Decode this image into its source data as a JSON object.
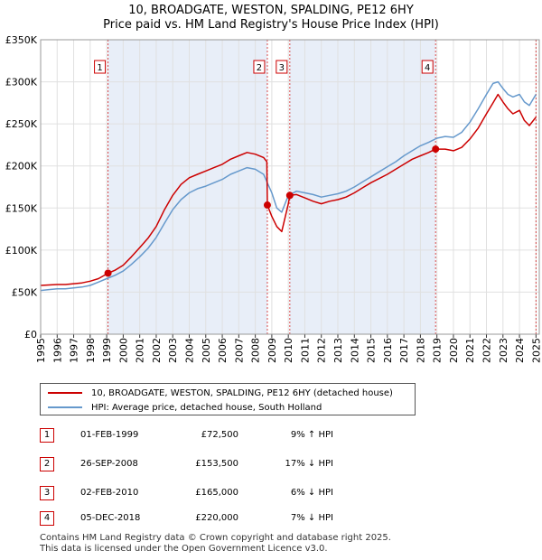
{
  "title_line1": "10, BROADGATE, WESTON, SPALDING, PE12 6HY",
  "title_line2": "Price paid vs. HM Land Registry's House Price Index (HPI)",
  "legend": {
    "series1": "10, BROADGATE, WESTON, SPALDING, PE12 6HY (detached house)",
    "series2": "HPI: Average price, detached house, South Holland"
  },
  "colors": {
    "property": "#cc0000",
    "hpi": "#6699cc",
    "shade": "#e8eef8",
    "grid": "#e0e0e0"
  },
  "sales": [
    {
      "num": "1",
      "date": "01-FEB-1999",
      "price": "£72,500",
      "hpi": "9% ↑ HPI"
    },
    {
      "num": "2",
      "date": "26-SEP-2008",
      "price": "£153,500",
      "hpi": "17% ↓ HPI"
    },
    {
      "num": "3",
      "date": "02-FEB-2010",
      "price": "£165,000",
      "hpi": "6% ↓ HPI"
    },
    {
      "num": "4",
      "date": "05-DEC-2018",
      "price": "£220,000",
      "hpi": "7% ↓ HPI"
    }
  ],
  "footer_line1": "Contains HM Land Registry data © Crown copyright and database right 2025.",
  "footer_line2": "This data is licensed under the Open Government Licence v3.0.",
  "chart_data": {
    "type": "line",
    "title": "10, BROADGATE, WESTON, SPALDING, PE12 6HY — Price paid vs. HM Land Registry's House Price Index (HPI)",
    "xlim": [
      1995.0,
      2025.2
    ],
    "ylim": [
      0,
      350000
    ],
    "x_ticks": [
      1995,
      1996,
      1997,
      1998,
      1999,
      2000,
      2001,
      2002,
      2003,
      2004,
      2005,
      2006,
      2007,
      2008,
      2009,
      2010,
      2011,
      2012,
      2013,
      2014,
      2015,
      2016,
      2017,
      2018,
      2019,
      2020,
      2021,
      2022,
      2023,
      2024,
      2025
    ],
    "y_ticks": [
      {
        "value": 0,
        "label": "£0"
      },
      {
        "value": 50000,
        "label": "£50K"
      },
      {
        "value": 100000,
        "label": "£100K"
      },
      {
        "value": 150000,
        "label": "£150K"
      },
      {
        "value": 200000,
        "label": "£200K"
      },
      {
        "value": 250000,
        "label": "£250K"
      },
      {
        "value": 300000,
        "label": "£300K"
      },
      {
        "value": 350000,
        "label": "£350K"
      }
    ],
    "shaded_spans": [
      [
        1999.08,
        2008.73
      ],
      [
        2010.09,
        2018.92
      ]
    ],
    "sale_markers": [
      {
        "label": "1",
        "x": 1999.08,
        "y": 72500
      },
      {
        "label": "2",
        "x": 2008.73,
        "y": 153500
      },
      {
        "label": "3",
        "x": 2010.09,
        "y": 165000
      },
      {
        "label": "4",
        "x": 2018.92,
        "y": 220000
      }
    ],
    "series": [
      {
        "name": "10, BROADGATE, WESTON, SPALDING, PE12 6HY (detached house)",
        "color": "#cc0000",
        "x": [
          1995.0,
          1995.5,
          1996.0,
          1996.5,
          1997.0,
          1997.5,
          1998.0,
          1998.5,
          1999.08,
          1999.5,
          2000.0,
          2000.5,
          2001.0,
          2001.5,
          2002.0,
          2002.5,
          2003.0,
          2003.5,
          2004.0,
          2004.5,
          2005.0,
          2005.5,
          2006.0,
          2006.5,
          2007.0,
          2007.5,
          2008.0,
          2008.5,
          2008.7,
          2008.73,
          2009.0,
          2009.3,
          2009.6,
          2010.0,
          2010.09,
          2010.5,
          2011.0,
          2011.5,
          2012.0,
          2012.5,
          2013.0,
          2013.5,
          2014.0,
          2014.5,
          2015.0,
          2015.5,
          2016.0,
          2016.5,
          2017.0,
          2017.5,
          2018.0,
          2018.5,
          2018.92,
          2019.5,
          2020.0,
          2020.5,
          2021.0,
          2021.5,
          2022.0,
          2022.4,
          2022.7,
          2023.0,
          2023.3,
          2023.6,
          2024.0,
          2024.3,
          2024.6,
          2025.0
        ],
        "y": [
          58000,
          58500,
          59000,
          59000,
          60000,
          61000,
          63000,
          66000,
          72500,
          76000,
          82000,
          92000,
          103000,
          114000,
          128000,
          148000,
          165000,
          178000,
          186000,
          190000,
          194000,
          198000,
          202000,
          208000,
          212000,
          216000,
          214000,
          210000,
          205000,
          153500,
          140000,
          128000,
          122000,
          155000,
          165000,
          166000,
          162000,
          158000,
          155000,
          158000,
          160000,
          163000,
          168000,
          174000,
          180000,
          185000,
          190000,
          196000,
          202000,
          208000,
          212000,
          216000,
          220000,
          220000,
          218000,
          222000,
          232000,
          245000,
          262000,
          275000,
          285000,
          276000,
          268000,
          262000,
          266000,
          254000,
          248000,
          258000
        ]
      },
      {
        "name": "HPI: Average price, detached house, South Holland",
        "color": "#6699cc",
        "x": [
          1995.0,
          1995.5,
          1996.0,
          1996.5,
          1997.0,
          1997.5,
          1998.0,
          1998.5,
          1999.0,
          1999.5,
          2000.0,
          2000.5,
          2001.0,
          2001.5,
          2002.0,
          2002.5,
          2003.0,
          2003.5,
          2004.0,
          2004.5,
          2005.0,
          2005.5,
          2006.0,
          2006.5,
          2007.0,
          2007.5,
          2008.0,
          2008.5,
          2009.0,
          2009.3,
          2009.6,
          2010.0,
          2010.5,
          2011.0,
          2011.5,
          2012.0,
          2012.5,
          2013.0,
          2013.5,
          2014.0,
          2014.5,
          2015.0,
          2015.5,
          2016.0,
          2016.5,
          2017.0,
          2017.5,
          2018.0,
          2018.5,
          2019.0,
          2019.5,
          2020.0,
          2020.5,
          2021.0,
          2021.5,
          2022.0,
          2022.4,
          2022.7,
          2023.0,
          2023.3,
          2023.6,
          2024.0,
          2024.3,
          2024.6,
          2025.0
        ],
        "y": [
          52000,
          53000,
          54000,
          54000,
          55000,
          56000,
          58000,
          62000,
          66000,
          70000,
          75000,
          83000,
          92000,
          102000,
          115000,
          132000,
          148000,
          160000,
          168000,
          173000,
          176000,
          180000,
          184000,
          190000,
          194000,
          198000,
          196000,
          190000,
          168000,
          150000,
          145000,
          165000,
          170000,
          168000,
          166000,
          163000,
          165000,
          167000,
          170000,
          175000,
          181000,
          187000,
          193000,
          199000,
          205000,
          212000,
          218000,
          224000,
          228000,
          233000,
          235000,
          234000,
          240000,
          252000,
          268000,
          285000,
          298000,
          300000,
          292000,
          285000,
          282000,
          285000,
          276000,
          272000,
          285000
        ]
      }
    ]
  }
}
